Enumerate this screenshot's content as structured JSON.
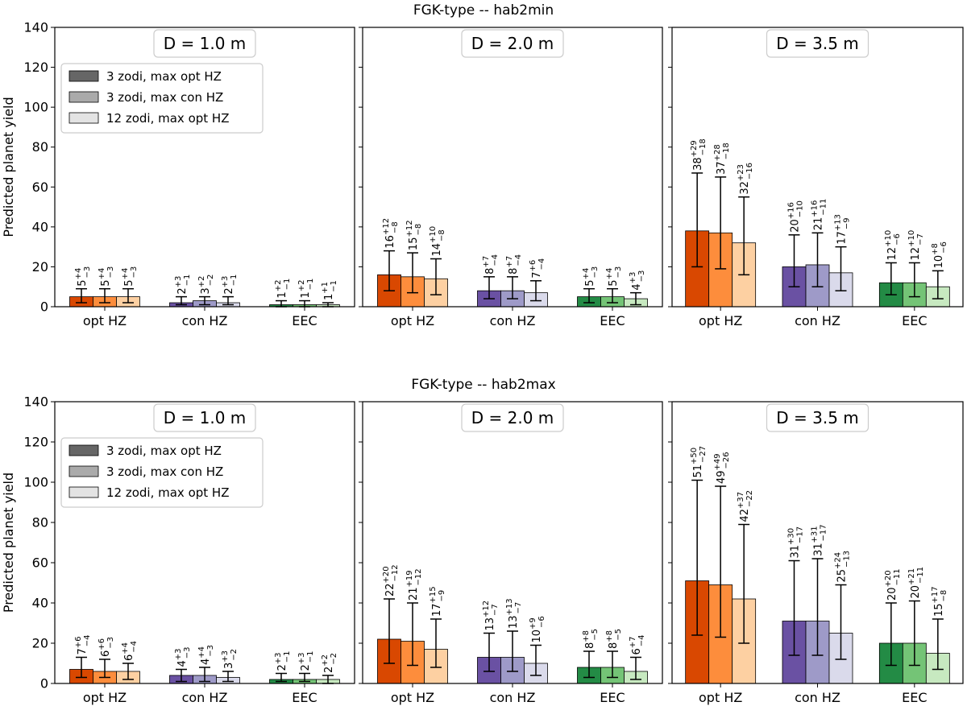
{
  "chart_data": [
    {
      "type": "bar",
      "title": "FGK-type -- hab2min",
      "ylabel": "Predicted planet yield",
      "ylim": [
        0,
        140
      ],
      "yticks": [
        0,
        20,
        40,
        60,
        80,
        100,
        120,
        140
      ],
      "categories": [
        "opt HZ",
        "con HZ",
        "EEC"
      ],
      "legend": {
        "placement": "upper-left of first panel",
        "entries": [
          "3 zodi, max opt HZ",
          "3 zodi, max con HZ",
          "12 zodi, max opt HZ"
        ],
        "colors": [
          "#666666",
          "#aaaaaa",
          "#e3e3e3"
        ]
      },
      "colors": {
        "opt HZ": [
          "#d94801",
          "#fd8d3c",
          "#fdd0a2"
        ],
        "con HZ": [
          "#6a51a3",
          "#9e9ac8",
          "#dadaeb"
        ],
        "EEC": [
          "#238b45",
          "#74c476",
          "#c7e9c0"
        ]
      },
      "panels": [
        {
          "label": "D = 1.0 m",
          "bars": [
            [
              {
                "v": 5,
                "p": 4,
                "m": 3
              },
              {
                "v": 5,
                "p": 4,
                "m": 3
              },
              {
                "v": 5,
                "p": 4,
                "m": 3
              }
            ],
            [
              {
                "v": 2,
                "p": 3,
                "m": 1
              },
              {
                "v": 3,
                "p": 2,
                "m": 2
              },
              {
                "v": 2,
                "p": 3,
                "m": 1
              }
            ],
            [
              {
                "v": 1,
                "p": 2,
                "m": 1
              },
              {
                "v": 1,
                "p": 2,
                "m": 1
              },
              {
                "v": 1,
                "p": 1,
                "m": 1
              }
            ]
          ]
        },
        {
          "label": "D = 2.0 m",
          "bars": [
            [
              {
                "v": 16,
                "p": 12,
                "m": 8
              },
              {
                "v": 15,
                "p": 12,
                "m": 8
              },
              {
                "v": 14,
                "p": 10,
                "m": 8
              }
            ],
            [
              {
                "v": 8,
                "p": 7,
                "m": 4
              },
              {
                "v": 8,
                "p": 7,
                "m": 4
              },
              {
                "v": 7,
                "p": 6,
                "m": 4
              }
            ],
            [
              {
                "v": 5,
                "p": 4,
                "m": 3
              },
              {
                "v": 5,
                "p": 4,
                "m": 3
              },
              {
                "v": 4,
                "p": 3,
                "m": 3
              }
            ]
          ]
        },
        {
          "label": "D = 3.5 m",
          "bars": [
            [
              {
                "v": 38,
                "p": 29,
                "m": 18
              },
              {
                "v": 37,
                "p": 28,
                "m": 18
              },
              {
                "v": 32,
                "p": 23,
                "m": 16
              }
            ],
            [
              {
                "v": 20,
                "p": 16,
                "m": 10
              },
              {
                "v": 21,
                "p": 16,
                "m": 11
              },
              {
                "v": 17,
                "p": 13,
                "m": 9
              }
            ],
            [
              {
                "v": 12,
                "p": 10,
                "m": 6
              },
              {
                "v": 12,
                "p": 10,
                "m": 7
              },
              {
                "v": 10,
                "p": 8,
                "m": 6
              }
            ]
          ]
        }
      ]
    },
    {
      "type": "bar",
      "title": "FGK-type -- hab2max",
      "ylabel": "Predicted planet yield",
      "ylim": [
        0,
        140
      ],
      "yticks": [
        0,
        20,
        40,
        60,
        80,
        100,
        120,
        140
      ],
      "categories": [
        "opt HZ",
        "con HZ",
        "EEC"
      ],
      "legend": {
        "placement": "upper-left of first panel",
        "entries": [
          "3 zodi, max opt HZ",
          "3 zodi, max con HZ",
          "12 zodi, max opt HZ"
        ],
        "colors": [
          "#666666",
          "#aaaaaa",
          "#e3e3e3"
        ]
      },
      "colors": {
        "opt HZ": [
          "#d94801",
          "#fd8d3c",
          "#fdd0a2"
        ],
        "con HZ": [
          "#6a51a3",
          "#9e9ac8",
          "#dadaeb"
        ],
        "EEC": [
          "#238b45",
          "#74c476",
          "#c7e9c0"
        ]
      },
      "panels": [
        {
          "label": "D = 1.0 m",
          "bars": [
            [
              {
                "v": 7,
                "p": 6,
                "m": 4
              },
              {
                "v": 6,
                "p": 6,
                "m": 3
              },
              {
                "v": 6,
                "p": 4,
                "m": 4
              }
            ],
            [
              {
                "v": 4,
                "p": 3,
                "m": 3
              },
              {
                "v": 4,
                "p": 4,
                "m": 3
              },
              {
                "v": 3,
                "p": 3,
                "m": 2
              }
            ],
            [
              {
                "v": 2,
                "p": 3,
                "m": 1
              },
              {
                "v": 2,
                "p": 3,
                "m": 1
              },
              {
                "v": 2,
                "p": 2,
                "m": 2
              }
            ]
          ]
        },
        {
          "label": "D = 2.0 m",
          "bars": [
            [
              {
                "v": 22,
                "p": 20,
                "m": 12
              },
              {
                "v": 21,
                "p": 19,
                "m": 12
              },
              {
                "v": 17,
                "p": 15,
                "m": 9
              }
            ],
            [
              {
                "v": 13,
                "p": 12,
                "m": 7
              },
              {
                "v": 13,
                "p": 13,
                "m": 7
              },
              {
                "v": 10,
                "p": 9,
                "m": 6
              }
            ],
            [
              {
                "v": 8,
                "p": 8,
                "m": 5
              },
              {
                "v": 8,
                "p": 8,
                "m": 5
              },
              {
                "v": 6,
                "p": 7,
                "m": 4
              }
            ]
          ]
        },
        {
          "label": "D = 3.5 m",
          "bars": [
            [
              {
                "v": 51,
                "p": 50,
                "m": 27
              },
              {
                "v": 49,
                "p": 49,
                "m": 26
              },
              {
                "v": 42,
                "p": 37,
                "m": 22
              }
            ],
            [
              {
                "v": 31,
                "p": 30,
                "m": 17
              },
              {
                "v": 31,
                "p": 31,
                "m": 17
              },
              {
                "v": 25,
                "p": 24,
                "m": 13
              }
            ],
            [
              {
                "v": 20,
                "p": 20,
                "m": 11
              },
              {
                "v": 20,
                "p": 21,
                "m": 11
              },
              {
                "v": 15,
                "p": 17,
                "m": 8
              }
            ]
          ]
        }
      ]
    }
  ]
}
